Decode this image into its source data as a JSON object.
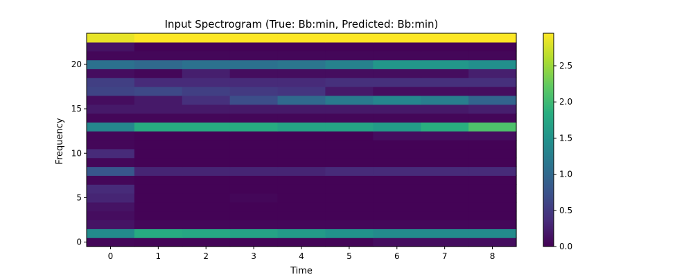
{
  "chart_data": {
    "type": "heatmap",
    "title": "Input Spectrogram (True: Bb:min, Predicted: Bb:min)",
    "xlabel": "Time",
    "ylabel": "Frequency",
    "x_ticks": [
      "0",
      "1",
      "2",
      "3",
      "4",
      "5",
      "6",
      "7",
      "8"
    ],
    "y_ticks": [
      "0",
      "5",
      "10",
      "15",
      "20"
    ],
    "colorbar_ticks": [
      "0.0",
      "0.5",
      "1.0",
      "1.5",
      "2.0",
      "2.5"
    ],
    "colorbar_range": [
      0,
      2.95
    ],
    "colormap": "viridis",
    "rows_bottom_to_top": [
      [
        0.05,
        0.03,
        0.03,
        0.03,
        0.03,
        0.03,
        0.1,
        0.1,
        0.1
      ],
      [
        1.4,
        1.8,
        1.75,
        1.7,
        1.6,
        1.5,
        1.4,
        1.4,
        1.4
      ],
      [
        0.15,
        0.05,
        0.05,
        0.05,
        0.05,
        0.05,
        0.05,
        0.05,
        0.05
      ],
      [
        0.1,
        0.02,
        0.02,
        0.02,
        0.02,
        0.02,
        0.02,
        0.02,
        0.02
      ],
      [
        0.15,
        0.02,
        0.02,
        0.02,
        0.02,
        0.02,
        0.02,
        0.02,
        0.02
      ],
      [
        0.3,
        0.02,
        0.02,
        0.05,
        0.02,
        0.02,
        0.02,
        0.02,
        0.02
      ],
      [
        0.35,
        0.02,
        0.02,
        0.02,
        0.02,
        0.02,
        0.02,
        0.02,
        0.02
      ],
      [
        0.05,
        0.02,
        0.02,
        0.02,
        0.02,
        0.02,
        0.02,
        0.02,
        0.02
      ],
      [
        0.8,
        0.3,
        0.3,
        0.3,
        0.3,
        0.35,
        0.35,
        0.35,
        0.35
      ],
      [
        0.05,
        0.02,
        0.02,
        0.02,
        0.02,
        0.02,
        0.02,
        0.02,
        0.02
      ],
      [
        0.35,
        0.02,
        0.02,
        0.02,
        0.02,
        0.02,
        0.02,
        0.02,
        0.02
      ],
      [
        0.05,
        0.02,
        0.02,
        0.02,
        0.02,
        0.02,
        0.02,
        0.02,
        0.02
      ],
      [
        0.05,
        0.02,
        0.02,
        0.02,
        0.02,
        0.02,
        0.1,
        0.1,
        0.1
      ],
      [
        1.35,
        1.8,
        1.8,
        1.8,
        1.7,
        1.7,
        1.6,
        1.85,
        2.1
      ],
      [
        0.05,
        0.05,
        0.05,
        0.05,
        0.05,
        0.05,
        0.05,
        0.05,
        0.05
      ],
      [
        0.2,
        0.2,
        0.2,
        0.2,
        0.2,
        0.2,
        0.2,
        0.2,
        0.25
      ],
      [
        0.1,
        0.2,
        0.4,
        0.7,
        1.0,
        1.2,
        1.35,
        1.25,
        0.95
      ],
      [
        0.6,
        0.65,
        0.55,
        0.5,
        0.45,
        0.2,
        0.1,
        0.1,
        0.1
      ],
      [
        0.55,
        0.35,
        0.35,
        0.35,
        0.35,
        0.4,
        0.4,
        0.4,
        0.4
      ],
      [
        0.1,
        0.05,
        0.25,
        0.1,
        0.1,
        0.1,
        0.1,
        0.1,
        0.25
      ],
      [
        1.1,
        1.0,
        1.1,
        1.1,
        1.15,
        1.3,
        1.55,
        1.55,
        1.45
      ],
      [
        0.05,
        0.05,
        0.05,
        0.05,
        0.05,
        0.05,
        0.05,
        0.05,
        0.05
      ],
      [
        0.15,
        0.02,
        0.02,
        0.02,
        0.02,
        0.02,
        0.02,
        0.02,
        0.02
      ],
      [
        2.85,
        2.95,
        2.95,
        2.95,
        2.95,
        2.95,
        2.95,
        2.95,
        2.95
      ]
    ]
  }
}
